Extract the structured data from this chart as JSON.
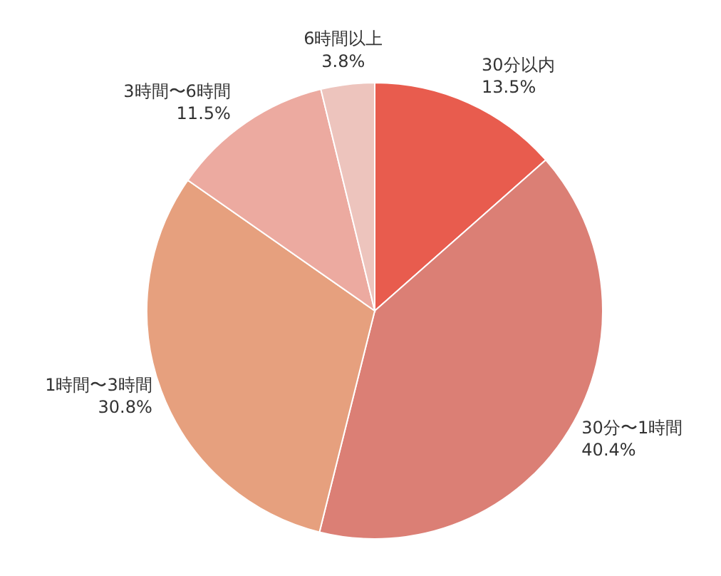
{
  "chart_data": {
    "type": "pie",
    "categories": [
      "30分以内",
      "30分〜1時間",
      "1時間〜3時間",
      "3時間〜6時間",
      "6時間以上"
    ],
    "values": [
      13.5,
      40.4,
      30.8,
      11.5,
      3.8
    ],
    "colors": [
      "#e85c4e",
      "#db7f75",
      "#e6a07e",
      "#ecaaa0",
      "#edc4bd"
    ],
    "value_labels": [
      "13.5%",
      "40.4%",
      "30.8%",
      "11.5%",
      "3.8%"
    ]
  }
}
